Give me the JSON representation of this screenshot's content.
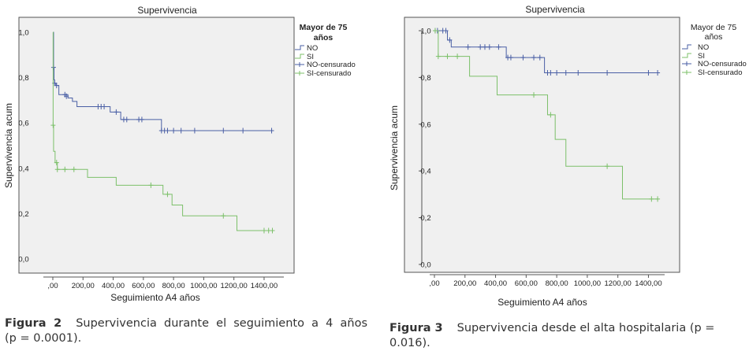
{
  "chart_data": [
    {
      "type": "line",
      "title": "Supervivencia",
      "xlabel": "Seguimiento A4 años",
      "ylabel": "Supervivencia acum",
      "xlim": [
        -50,
        1530
      ],
      "ylim": [
        -0.05,
        1.05
      ],
      "x_ticks": [
        0,
        200,
        400,
        600,
        800,
        1000,
        1200,
        1400
      ],
      "x_tick_labels": [
        ",00",
        "200,00",
        "400,00",
        "600,00",
        "800,00",
        "1000,00",
        "1200,00",
        "1400,00"
      ],
      "y_ticks": [
        0,
        0.2,
        0.4,
        0.6,
        0.8,
        1.0
      ],
      "y_tick_labels": [
        "0,0",
        "0,2",
        "0,4",
        "0,6",
        "0,8",
        "1,0"
      ],
      "legend": {
        "title": [
          "Mayor de 75",
          "años"
        ],
        "placement": "top-right",
        "entries": [
          "NO",
          "SI",
          "NO-censurado",
          "SI-censurado"
        ]
      },
      "series": [
        {
          "name": "NO",
          "color": "#4a5fa5",
          "end_x": 1450,
          "steps": [
            [
              0,
              1.0
            ],
            [
              5,
              0.845
            ],
            [
              8,
              0.79
            ],
            [
              12,
              0.775
            ],
            [
              20,
              0.765
            ],
            [
              40,
              0.725
            ],
            [
              100,
              0.71
            ],
            [
              130,
              0.695
            ],
            [
              160,
              0.672
            ],
            [
              380,
              0.648
            ],
            [
              450,
              0.615
            ],
            [
              720,
              0.566
            ]
          ],
          "censored": [
            [
              5,
              0.845
            ],
            [
              12,
              0.775
            ],
            [
              25,
              0.765
            ],
            [
              80,
              0.725
            ],
            [
              90,
              0.718
            ],
            [
              300,
              0.672
            ],
            [
              320,
              0.672
            ],
            [
              340,
              0.672
            ],
            [
              420,
              0.648
            ],
            [
              470,
              0.615
            ],
            [
              490,
              0.615
            ],
            [
              570,
              0.615
            ],
            [
              590,
              0.615
            ],
            [
              720,
              0.566
            ],
            [
              740,
              0.566
            ],
            [
              760,
              0.566
            ],
            [
              800,
              0.566
            ],
            [
              850,
              0.566
            ],
            [
              940,
              0.566
            ],
            [
              1130,
              0.566
            ],
            [
              1260,
              0.566
            ],
            [
              1450,
              0.566
            ]
          ]
        },
        {
          "name": "SI",
          "color": "#7cc06a",
          "end_x": 1455,
          "steps": [
            [
              0,
              1.0
            ],
            [
              2,
              0.59
            ],
            [
              5,
              0.475
            ],
            [
              15,
              0.425
            ],
            [
              30,
              0.395
            ],
            [
              230,
              0.36
            ],
            [
              420,
              0.325
            ],
            [
              730,
              0.285
            ],
            [
              790,
              0.238
            ],
            [
              860,
              0.19
            ],
            [
              1220,
              0.125
            ]
          ],
          "censored": [
            [
              2,
              0.59
            ],
            [
              25,
              0.425
            ],
            [
              30,
              0.395
            ],
            [
              80,
              0.395
            ],
            [
              140,
              0.395
            ],
            [
              650,
              0.325
            ],
            [
              760,
              0.285
            ],
            [
              1130,
              0.19
            ],
            [
              1400,
              0.125
            ],
            [
              1430,
              0.125
            ],
            [
              1455,
              0.125
            ]
          ]
        }
      ]
    },
    {
      "type": "line",
      "title": "Supervivencia",
      "xlabel": "Seguimiento A4 años",
      "ylabel": "Supervivencia acum",
      "xlim": [
        -50,
        1530
      ],
      "ylim": [
        -0.03,
        1.03
      ],
      "x_ticks": [
        0,
        200,
        400,
        600,
        800,
        1000,
        1200,
        1400
      ],
      "x_tick_labels": [
        ",00",
        "200,00",
        "400,00",
        "600,00",
        "800,00",
        "1000,00",
        "1200,00",
        "1400,00"
      ],
      "y_ticks": [
        0,
        0.2,
        0.4,
        0.6,
        0.8,
        1.0
      ],
      "y_tick_labels": [
        "0,0",
        "0,2",
        "0,4",
        "0,6",
        "0,8",
        "1,0"
      ],
      "legend": {
        "title": [
          "Mayor de 75",
          "años"
        ],
        "placement": "top-right",
        "entries": [
          "NO",
          "SI",
          "NO-censurado",
          "SI-censurado"
        ]
      },
      "series": [
        {
          "name": "NO",
          "color": "#4a5fa5",
          "end_x": 1460,
          "steps": [
            [
              0,
              1.0
            ],
            [
              85,
              0.96
            ],
            [
              110,
              0.93
            ],
            [
              470,
              0.885
            ],
            [
              720,
              0.82
            ]
          ],
          "censored": [
            [
              5,
              1.0
            ],
            [
              20,
              1.0
            ],
            [
              55,
              1.0
            ],
            [
              75,
              1.0
            ],
            [
              100,
              0.96
            ],
            [
              220,
              0.93
            ],
            [
              300,
              0.93
            ],
            [
              330,
              0.93
            ],
            [
              360,
              0.93
            ],
            [
              420,
              0.93
            ],
            [
              480,
              0.885
            ],
            [
              500,
              0.885
            ],
            [
              580,
              0.885
            ],
            [
              650,
              0.885
            ],
            [
              690,
              0.885
            ],
            [
              740,
              0.82
            ],
            [
              760,
              0.82
            ],
            [
              800,
              0.82
            ],
            [
              860,
              0.82
            ],
            [
              940,
              0.82
            ],
            [
              1130,
              0.82
            ],
            [
              1400,
              0.82
            ],
            [
              1460,
              0.82
            ]
          ]
        },
        {
          "name": "SI",
          "color": "#7cc06a",
          "end_x": 1460,
          "steps": [
            [
              0,
              1.0
            ],
            [
              25,
              0.89
            ],
            [
              230,
              0.805
            ],
            [
              410,
              0.725
            ],
            [
              740,
              0.64
            ],
            [
              790,
              0.535
            ],
            [
              860,
              0.42
            ],
            [
              1230,
              0.28
            ]
          ],
          "censored": [
            [
              5,
              1.0
            ],
            [
              25,
              0.89
            ],
            [
              85,
              0.89
            ],
            [
              150,
              0.89
            ],
            [
              650,
              0.725
            ],
            [
              760,
              0.64
            ],
            [
              1130,
              0.42
            ],
            [
              1420,
              0.28
            ],
            [
              1460,
              0.28
            ]
          ]
        }
      ]
    }
  ],
  "captions": [
    {
      "label": "Figura 2",
      "text": "Supervivencia durante el seguimiento a 4 años",
      "text2": "(p = 0.0001)."
    },
    {
      "label": "Figura 3",
      "text": "Supervivencia desde el alta hospitalaria (p = 0.016)."
    }
  ]
}
